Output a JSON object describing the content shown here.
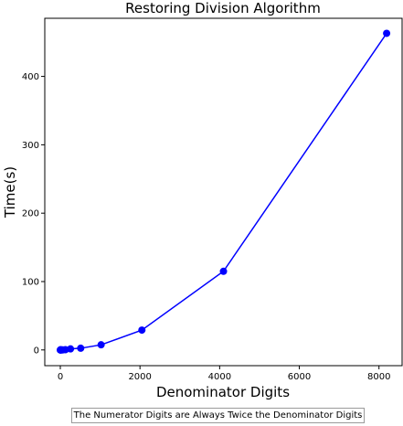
{
  "chart_data": {
    "type": "line",
    "title": "Restoring Division Algorithm",
    "xlabel": "Denominator Digits",
    "ylabel": "Time(s)",
    "xlim": [
      -390,
      8580
    ],
    "ylim": [
      -23,
      485
    ],
    "xticks": [
      0,
      2000,
      4000,
      6000,
      8000
    ],
    "yticks": [
      0,
      100,
      200,
      300,
      400
    ],
    "grid": false,
    "color": "#0000ff",
    "series": [
      {
        "x": [
          1,
          2,
          4,
          8,
          16,
          32,
          64,
          128,
          256,
          512,
          1024,
          2048,
          4096,
          8192
        ],
        "y": [
          0,
          0,
          0,
          0,
          0,
          0,
          0.1,
          0.4,
          1.5,
          2.5,
          7.5,
          29,
          115,
          463
        ]
      }
    ]
  },
  "footnote": "The Numerator Digits are Always Twice the Denominator Digits"
}
